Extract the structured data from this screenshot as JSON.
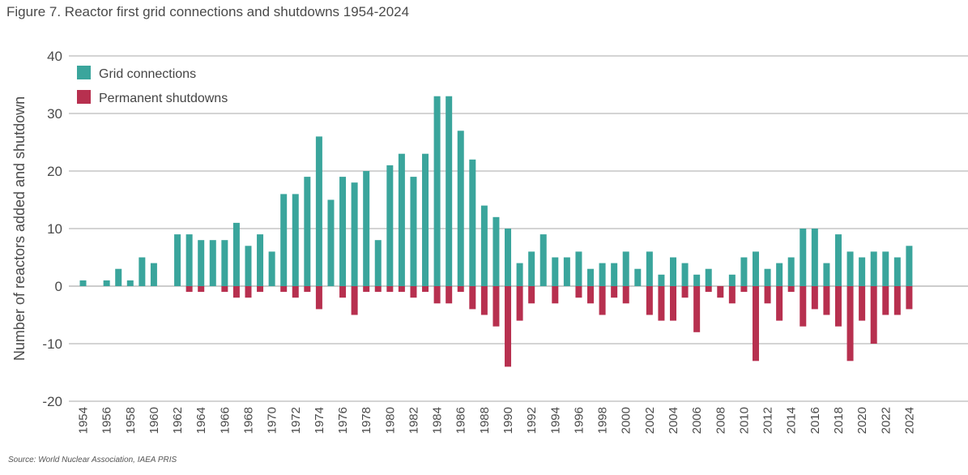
{
  "figure": {
    "title": "Figure 7. Reactor first grid connections and shutdowns 1954-2024",
    "source": "Source: World Nuclear Association, IAEA PRIS"
  },
  "chart_data": {
    "type": "bar",
    "title": "Figure 7. Reactor first grid connections and shutdowns 1954-2024",
    "xlabel": "",
    "ylabel": "Number of reactors added and shutdown",
    "ylim": [
      -20,
      40
    ],
    "yticks": [
      -20,
      -10,
      0,
      10,
      20,
      30,
      40
    ],
    "grid": true,
    "legend_position": "top-left",
    "categories": [
      "1954",
      "1955",
      "1956",
      "1957",
      "1958",
      "1959",
      "1960",
      "1961",
      "1962",
      "1963",
      "1964",
      "1965",
      "1966",
      "1967",
      "1968",
      "1969",
      "1970",
      "1971",
      "1972",
      "1973",
      "1974",
      "1975",
      "1976",
      "1977",
      "1978",
      "1979",
      "1980",
      "1981",
      "1982",
      "1983",
      "1984",
      "1985",
      "1986",
      "1987",
      "1988",
      "1989",
      "1990",
      "1991",
      "1992",
      "1993",
      "1994",
      "1995",
      "1996",
      "1997",
      "1998",
      "1999",
      "2000",
      "2001",
      "2002",
      "2003",
      "2004",
      "2005",
      "2006",
      "2007",
      "2008",
      "2009",
      "2010",
      "2011",
      "2012",
      "2013",
      "2014",
      "2015",
      "2016",
      "2017",
      "2018",
      "2019",
      "2020",
      "2021",
      "2022",
      "2023",
      "2024"
    ],
    "tick_labels": [
      "1954",
      "1956",
      "1958",
      "1960",
      "1962",
      "1964",
      "1966",
      "1968",
      "1970",
      "1972",
      "1974",
      "1976",
      "1978",
      "1980",
      "1982",
      "1984",
      "1986",
      "1988",
      "1990",
      "1992",
      "1994",
      "1996",
      "1998",
      "2000",
      "2002",
      "2004",
      "2006",
      "2008",
      "2010",
      "2012",
      "2014",
      "2016",
      "2018",
      "2020",
      "2022",
      "2024"
    ],
    "series": [
      {
        "name": "Grid connections",
        "color": "#3aa59c",
        "values": [
          1,
          0,
          1,
          3,
          1,
          5,
          4,
          0,
          9,
          9,
          8,
          8,
          8,
          11,
          7,
          9,
          6,
          16,
          16,
          19,
          26,
          15,
          19,
          18,
          20,
          8,
          21,
          23,
          19,
          23,
          33,
          33,
          27,
          22,
          14,
          12,
          10,
          4,
          6,
          9,
          5,
          5,
          6,
          3,
          4,
          4,
          6,
          3,
          6,
          2,
          5,
          4,
          2,
          3,
          0,
          2,
          5,
          6,
          3,
          4,
          5,
          10,
          10,
          4,
          9,
          6,
          5,
          6,
          6,
          5,
          7
        ]
      },
      {
        "name": "Permanent shutdowns",
        "color": "#b7304f",
        "values": [
          0,
          0,
          0,
          0,
          0,
          0,
          0,
          0,
          0,
          -1,
          -1,
          0,
          -1,
          -2,
          -2,
          -1,
          0,
          -1,
          -2,
          -1,
          -4,
          0,
          -2,
          -5,
          -1,
          -1,
          -1,
          -1,
          -2,
          -1,
          -3,
          -3,
          -1,
          -4,
          -5,
          -7,
          -14,
          -6,
          -3,
          0,
          -3,
          0,
          -2,
          -3,
          -5,
          -2,
          -3,
          0,
          -5,
          -6,
          -6,
          -2,
          -8,
          -1,
          -2,
          -3,
          -1,
          -13,
          -3,
          -6,
          -1,
          -7,
          -4,
          -5,
          -7,
          -13,
          -6,
          -10,
          -5,
          -5,
          -4
        ]
      }
    ]
  }
}
